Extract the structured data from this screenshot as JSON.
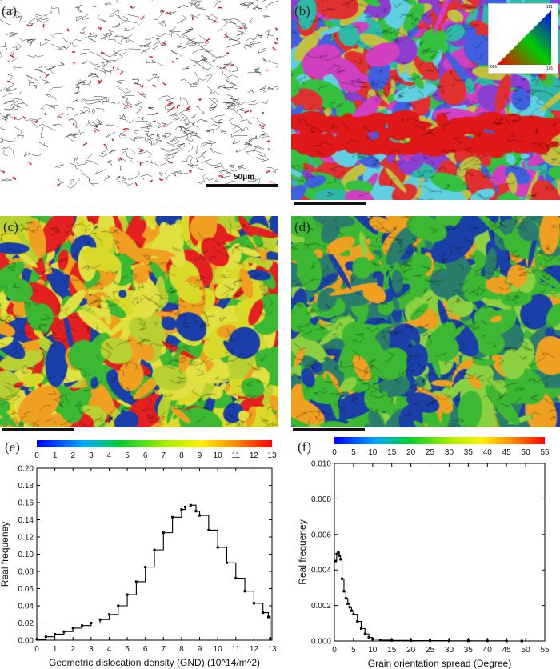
{
  "panels": {
    "a": {
      "label": "(a)",
      "scale": "50μm"
    },
    "b": {
      "label": "(b)",
      "legend_corner_labels": [
        "001",
        "101",
        "111"
      ]
    },
    "c": {
      "label": "(c)"
    },
    "d": {
      "label": "(d)"
    },
    "e": {
      "label": "(e)"
    },
    "f": {
      "label": "(f)"
    }
  },
  "colors": {
    "map_blue": "#1b3fa8",
    "map_green": "#3cb832",
    "map_yellow": "#d9d92a",
    "map_orange": "#f0a020",
    "map_red": "#e52020",
    "curve": "#000000"
  },
  "chart_data": [
    {
      "type": "line",
      "panel": "e",
      "xlabel": "Geometric dislocation density (GND) (10^14/m^2)",
      "ylabel": "Real frequeney",
      "xlim": [
        0,
        13
      ],
      "ylim": [
        0,
        0.2
      ],
      "xticks": [
        "0",
        "1",
        "2",
        "3",
        "4",
        "5",
        "6",
        "7",
        "8",
        "9",
        "10",
        "11",
        "12",
        "13"
      ],
      "yticks": [
        "0.00",
        "0.02",
        "0.04",
        "0.06",
        "0.08",
        "0.10",
        "0.12",
        "0.14",
        "0.16",
        "0.18",
        "0.20"
      ],
      "colorbar_ticks": [
        "0",
        "1",
        "2",
        "3",
        "4",
        "5",
        "6",
        "7",
        "8",
        "9",
        "10",
        "11",
        "12",
        "13"
      ],
      "x": [
        0,
        0.5,
        1,
        1.5,
        2,
        2.5,
        3,
        3.5,
        4,
        4.5,
        5,
        5.5,
        6,
        6.5,
        7,
        7.5,
        8,
        8.2,
        8.5,
        8.8,
        9,
        9.5,
        10,
        10.5,
        11,
        11.5,
        12,
        12.5,
        12.8,
        12.9
      ],
      "y": [
        0.001,
        0.004,
        0.007,
        0.01,
        0.014,
        0.017,
        0.02,
        0.024,
        0.03,
        0.04,
        0.053,
        0.068,
        0.085,
        0.105,
        0.125,
        0.143,
        0.152,
        0.155,
        0.157,
        0.15,
        0.145,
        0.128,
        0.108,
        0.09,
        0.072,
        0.057,
        0.043,
        0.032,
        0.027,
        0.002
      ]
    },
    {
      "type": "line",
      "panel": "f",
      "xlabel": "Grain orientation spread (Degree)",
      "ylabel": "Real frequeney",
      "xlim": [
        0,
        55
      ],
      "ylim": [
        0,
        0.01
      ],
      "xticks": [
        "0",
        "5",
        "10",
        "15",
        "20",
        "25",
        "30",
        "35",
        "40",
        "45",
        "50",
        "55"
      ],
      "yticks": [
        "0.000",
        "0.002",
        "0.004",
        "0.006",
        "0.008",
        "0.010"
      ],
      "colorbar_ticks": [
        "0",
        "5",
        "10",
        "15",
        "20",
        "25",
        "30",
        "35",
        "40",
        "45",
        "50",
        "55"
      ],
      "x": [
        0.3,
        0.6,
        1,
        1.3,
        1.6,
        2,
        2.5,
        3,
        3.5,
        4,
        4.5,
        5,
        6,
        7,
        8,
        9,
        10,
        12,
        15,
        20,
        25,
        30,
        35,
        40,
        45,
        49
      ],
      "y": [
        0.0045,
        0.0049,
        0.005,
        0.0048,
        0.0046,
        0.0035,
        0.0028,
        0.0024,
        0.0021,
        0.0019,
        0.0017,
        0.0015,
        0.0011,
        0.0007,
        0.0004,
        0.0002,
        0.0001,
        5e-05,
        3e-05,
        2e-05,
        2e-05,
        1e-05,
        1e-05,
        1e-05,
        0.0,
        0.0
      ]
    }
  ]
}
